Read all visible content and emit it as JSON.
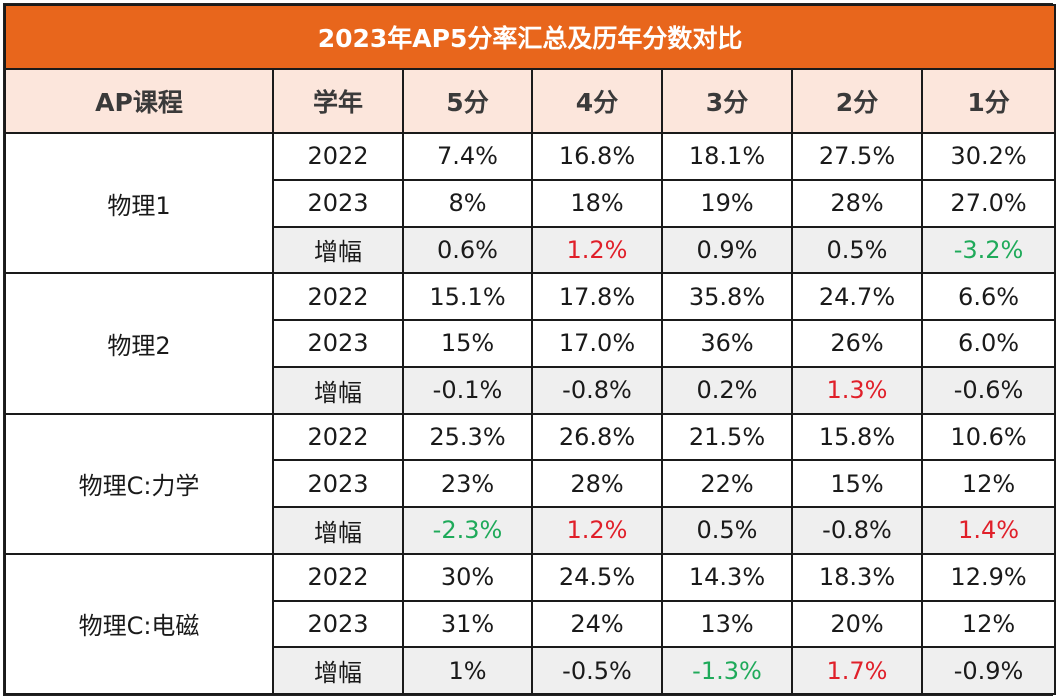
{
  "title": "2023年AP5分率汇总及历年分数对比",
  "headers": [
    "AP课程",
    "学年",
    "5分",
    "4分",
    "3分",
    "2分",
    "1分"
  ],
  "colors": {
    "title_bg": "#e8661c",
    "header_bg": "#fce6dc",
    "increase": "#e0202a",
    "decrease": "#1faa5a",
    "delta_row_bg": "#efefef"
  },
  "courses": [
    {
      "name": "物理1",
      "rows": [
        {
          "year": "2022",
          "values": [
            "7.4%",
            "16.8%",
            "18.1%",
            "27.5%",
            "30.2%"
          ]
        },
        {
          "year": "2023",
          "values": [
            "8%",
            "18%",
            "19%",
            "28%",
            "27.0%"
          ]
        },
        {
          "year": "增幅",
          "values": [
            "0.6%",
            "1.2%",
            "0.9%",
            "0.5%",
            "-3.2%"
          ],
          "highlight": [
            "",
            "pos",
            "",
            "",
            "neg"
          ]
        }
      ]
    },
    {
      "name": "物理2",
      "rows": [
        {
          "year": "2022",
          "values": [
            "15.1%",
            "17.8%",
            "35.8%",
            "24.7%",
            "6.6%"
          ]
        },
        {
          "year": "2023",
          "values": [
            "15%",
            "17.0%",
            "36%",
            "26%",
            "6.0%"
          ]
        },
        {
          "year": "增幅",
          "values": [
            "-0.1%",
            "-0.8%",
            "0.2%",
            "1.3%",
            "-0.6%"
          ],
          "highlight": [
            "",
            "",
            "",
            "pos",
            ""
          ]
        }
      ]
    },
    {
      "name": "物理C:力学",
      "rows": [
        {
          "year": "2022",
          "values": [
            "25.3%",
            "26.8%",
            "21.5%",
            "15.8%",
            "10.6%"
          ]
        },
        {
          "year": "2023",
          "values": [
            "23%",
            "28%",
            "22%",
            "15%",
            "12%"
          ]
        },
        {
          "year": "增幅",
          "values": [
            "-2.3%",
            "1.2%",
            "0.5%",
            "-0.8%",
            "1.4%"
          ],
          "highlight": [
            "neg",
            "pos",
            "",
            "",
            "pos"
          ]
        }
      ]
    },
    {
      "name": "物理C:电磁",
      "rows": [
        {
          "year": "2022",
          "values": [
            "30%",
            "24.5%",
            "14.3%",
            "18.3%",
            "12.9%"
          ]
        },
        {
          "year": "2023",
          "values": [
            "31%",
            "24%",
            "13%",
            "20%",
            "12%"
          ]
        },
        {
          "year": "增幅",
          "values": [
            "1%",
            "-0.5%",
            "-1.3%",
            "1.7%",
            "-0.9%"
          ],
          "highlight": [
            "",
            "",
            "neg",
            "pos",
            ""
          ]
        }
      ]
    }
  ]
}
